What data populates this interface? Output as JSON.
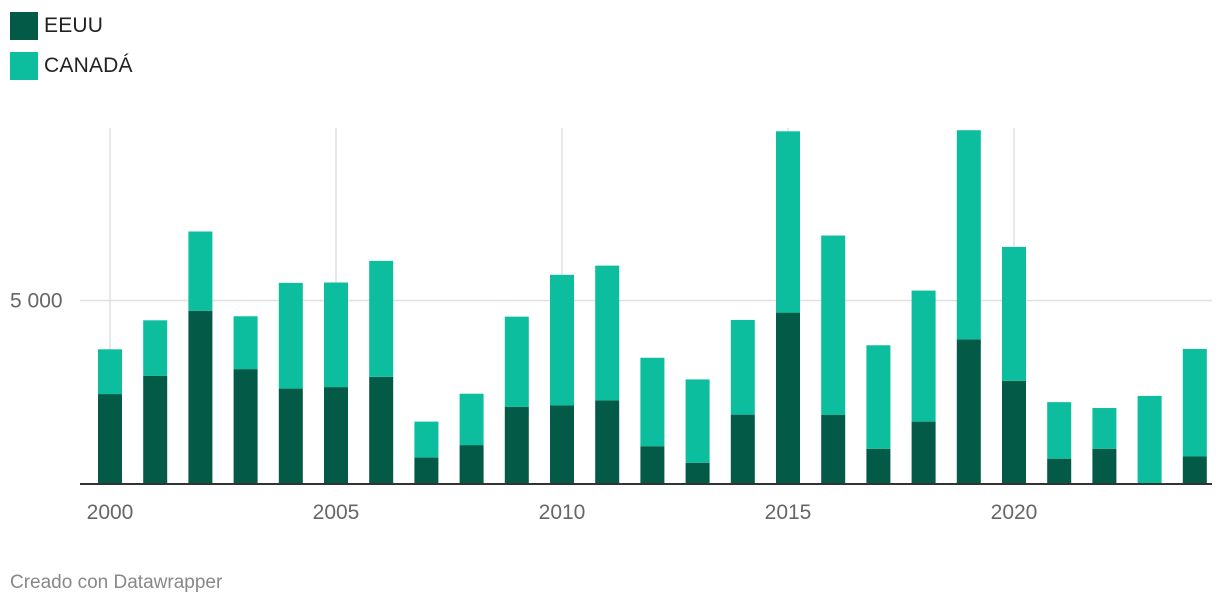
{
  "legend": {
    "items": [
      {
        "label": "EEUU",
        "color": "#035a46"
      },
      {
        "label": "CANADÁ",
        "color": "#0cbd9e"
      }
    ]
  },
  "footer": {
    "credit": "Creado con Datawrapper"
  },
  "chart_data": {
    "type": "bar",
    "stacked": true,
    "categories": [
      "2000",
      "2001",
      "2002",
      "2003",
      "2004",
      "2005",
      "2006",
      "2007",
      "2008",
      "2009",
      "2010",
      "2011",
      "2012",
      "2013",
      "2014",
      "2015",
      "2016",
      "2017",
      "2018",
      "2019",
      "2020",
      "2021",
      "2022",
      "2023",
      "2024"
    ],
    "series": [
      {
        "name": "EEUU",
        "color": "#035a46",
        "values": [
          2450,
          2950,
          4720,
          3130,
          2600,
          2640,
          2920,
          720,
          1060,
          2100,
          2140,
          2280,
          1030,
          580,
          1890,
          4670,
          1880,
          960,
          1700,
          3940,
          2810,
          690,
          960,
          0,
          750
        ]
      },
      {
        "name": "CANADÁ",
        "color": "#0cbd9e",
        "values": [
          1220,
          1510,
          2160,
          1440,
          2880,
          2850,
          3160,
          980,
          1400,
          2460,
          3560,
          3670,
          2410,
          2270,
          2580,
          4940,
          4890,
          2820,
          3570,
          5700,
          3650,
          1540,
          1110,
          2400,
          2930
        ]
      }
    ],
    "ylim": [
      0,
      9700
    ],
    "yticks": [
      {
        "value": 5000,
        "label": "5 000"
      }
    ],
    "xticks": [
      {
        "year": "2000",
        "label": "2000"
      },
      {
        "year": "2005",
        "label": "2005"
      },
      {
        "year": "2010",
        "label": "2010"
      },
      {
        "year": "2015",
        "label": "2015"
      },
      {
        "year": "2020",
        "label": "2020"
      }
    ],
    "title": "",
    "xlabel": "",
    "ylabel": ""
  }
}
